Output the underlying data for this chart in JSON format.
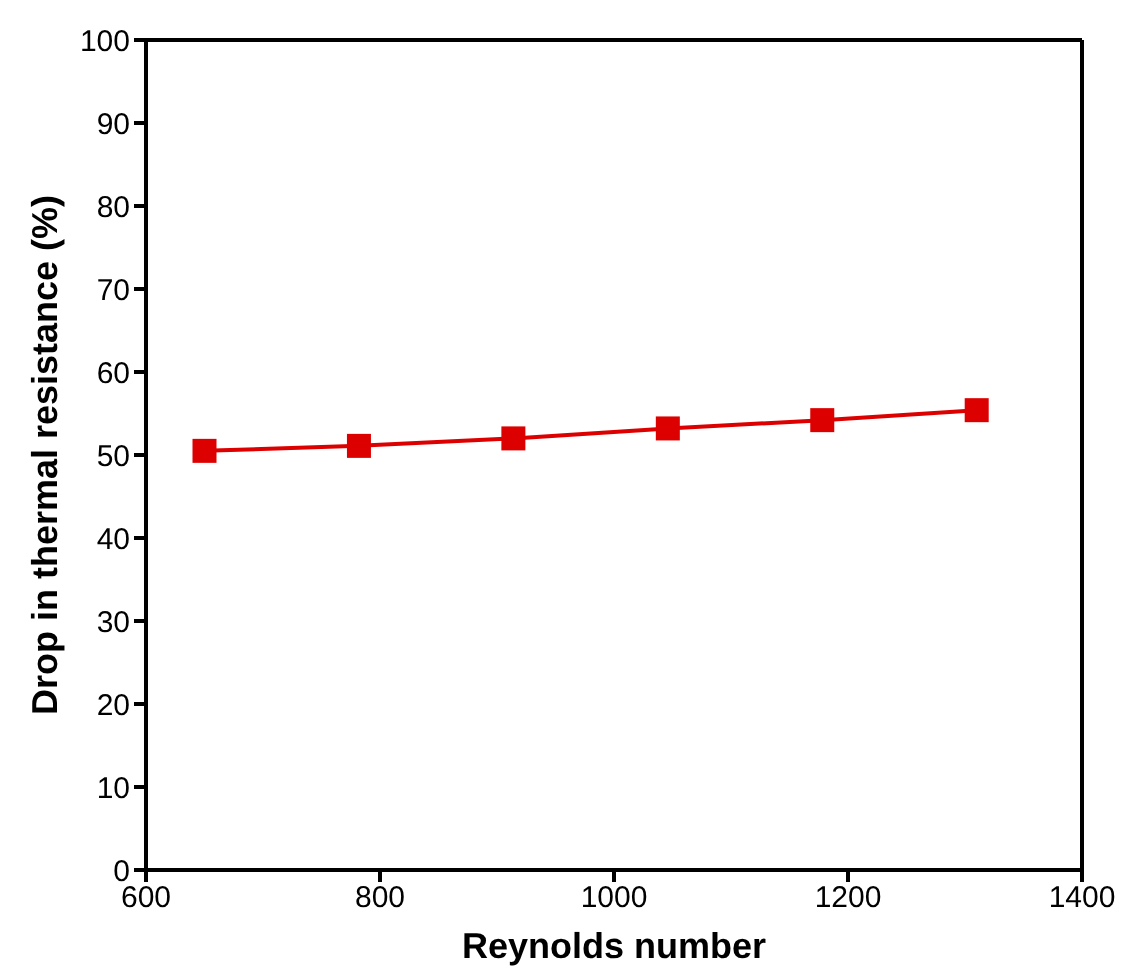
{
  "chart_data": {
    "type": "line",
    "xlabel": "Reynolds number",
    "ylabel": "Drop in thermal resistance (%)",
    "x": [
      650,
      782,
      914,
      1046,
      1178,
      1310
    ],
    "series": [
      {
        "color": "#dd0000",
        "values": [
          50.5,
          51.1,
          52.0,
          53.2,
          54.2,
          55.4
        ]
      }
    ],
    "xlim": [
      600,
      1400
    ],
    "xticks": [
      600,
      800,
      1000,
      1200,
      1400
    ],
    "ylim": [
      0,
      100
    ],
    "yticks": [
      0,
      10,
      20,
      30,
      40,
      50,
      60,
      70,
      80,
      90,
      100
    ],
    "marker": "square",
    "line_style": "solid",
    "grid": false,
    "legend": false
  }
}
